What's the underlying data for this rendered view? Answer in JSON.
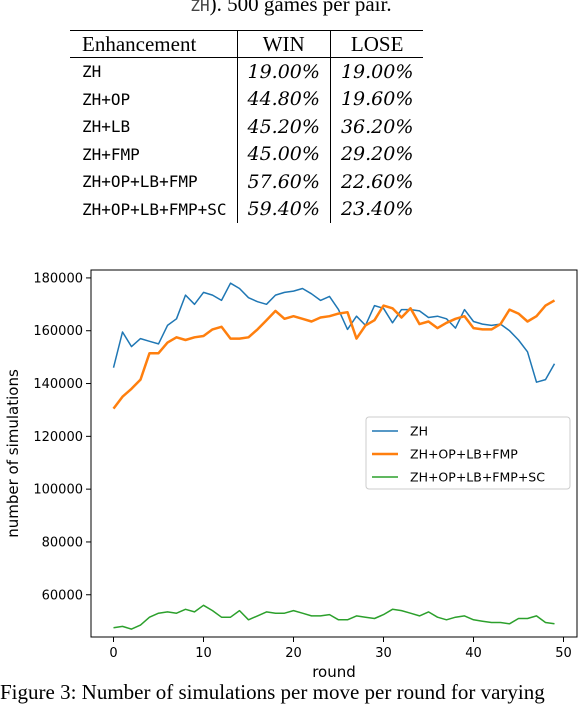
{
  "caption_top": {
    "mono": "ZH",
    "text": "). 500 games per pair."
  },
  "table": {
    "headers": [
      "Enhancement",
      "WIN",
      "LOSE"
    ],
    "rows": [
      [
        "ZH",
        "19.00%",
        "19.00%"
      ],
      [
        "ZH+OP",
        "44.80%",
        "19.60%"
      ],
      [
        "ZH+LB",
        "45.20%",
        "36.20%"
      ],
      [
        "ZH+FMP",
        "45.00%",
        "29.20%"
      ],
      [
        "ZH+OP+LB+FMP",
        "57.60%",
        "22.60%"
      ],
      [
        "ZH+OP+LB+FMP+SC",
        "59.40%",
        "23.40%"
      ]
    ]
  },
  "chart_data": {
    "type": "line",
    "xlabel": "round",
    "ylabel": "number of simulations",
    "xlim": [
      -2.5,
      51.5
    ],
    "ylim": [
      44000,
      183000
    ],
    "xticks": [
      0,
      10,
      20,
      30,
      40,
      50
    ],
    "yticks": [
      60000,
      80000,
      100000,
      120000,
      140000,
      160000,
      180000
    ],
    "legend_position": "center-right",
    "x": [
      0,
      1,
      2,
      3,
      4,
      5,
      6,
      7,
      8,
      9,
      10,
      11,
      12,
      13,
      14,
      15,
      16,
      17,
      18,
      19,
      20,
      21,
      22,
      23,
      24,
      25,
      26,
      27,
      28,
      29,
      30,
      31,
      32,
      33,
      34,
      35,
      36,
      37,
      38,
      39,
      40,
      41,
      42,
      43,
      44,
      45,
      46,
      47,
      48,
      49
    ],
    "series": [
      {
        "name": "ZH",
        "color": "#1f77b4",
        "width": 1.5,
        "values": [
          146000,
          159500,
          154000,
          157000,
          156000,
          155000,
          162000,
          164500,
          173500,
          170000,
          174500,
          173500,
          171500,
          178000,
          176000,
          172500,
          171000,
          170000,
          173500,
          174500,
          175000,
          176000,
          174000,
          171500,
          173000,
          168000,
          160500,
          165500,
          162000,
          169500,
          168500,
          163000,
          168000,
          168000,
          167500,
          165000,
          165500,
          164500,
          161000,
          168000,
          163500,
          162500,
          162000,
          162500,
          160000,
          156500,
          152000,
          140500,
          141500,
          147500
        ]
      },
      {
        "name": "ZH+OP+LB+FMP",
        "color": "#ff7f0e",
        "width": 2.5,
        "values": [
          130500,
          135000,
          138000,
          141500,
          151500,
          151500,
          155500,
          157500,
          156500,
          157500,
          158000,
          160500,
          161500,
          157000,
          157000,
          157500,
          160500,
          164000,
          167500,
          164500,
          165500,
          164500,
          163500,
          165000,
          165500,
          166500,
          167000,
          157000,
          162000,
          164000,
          169500,
          168500,
          165000,
          168500,
          162500,
          163500,
          161000,
          163000,
          164500,
          165500,
          161000,
          160500,
          160500,
          162500,
          168000,
          166500,
          163500,
          165500,
          169500,
          171500
        ]
      },
      {
        "name": "ZH+OP+LB+FMP+SC",
        "color": "#2ca02c",
        "width": 1.5,
        "values": [
          47500,
          48000,
          47000,
          48500,
          51500,
          53000,
          53500,
          53000,
          54500,
          53500,
          56000,
          54000,
          51500,
          51500,
          54000,
          50500,
          52000,
          53500,
          53000,
          53000,
          54000,
          53000,
          52000,
          52000,
          52500,
          50500,
          50500,
          52000,
          51500,
          51000,
          52500,
          54500,
          54000,
          53000,
          52000,
          53500,
          51500,
          50500,
          51500,
          52000,
          50500,
          50000,
          49500,
          49500,
          49000,
          51000,
          51000,
          52000,
          49500,
          49000
        ]
      }
    ]
  },
  "caption_bottom": "Figure 3: Number of simulations per move per round for varying"
}
